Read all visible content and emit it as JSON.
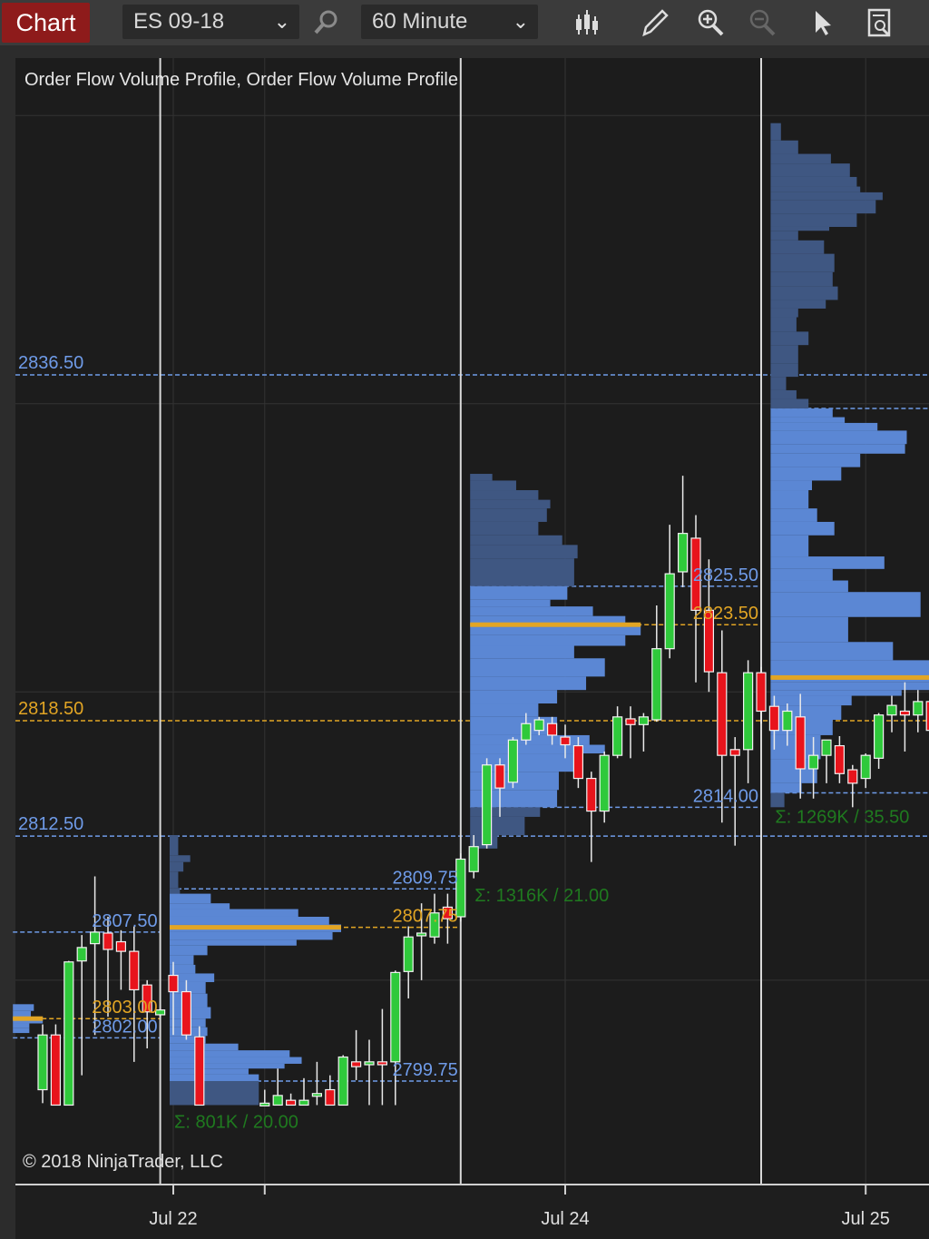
{
  "toolbar": {
    "chart_label": "Chart",
    "instrument": "ES 09-18",
    "interval": "60 Minute",
    "icons": [
      "search-icon",
      "bar-type-icon",
      "pencil-icon",
      "zoom-in-icon",
      "zoom-out-icon",
      "pointer-icon",
      "data-box-icon"
    ]
  },
  "chart_data": {
    "type": "candlestick-volume-profile",
    "title": "Order Flow Volume Profile, Order Flow Volume Profile",
    "copyright": "© 2018 NinjaTrader, LLC",
    "grid": true,
    "colors": {
      "background": "#1c1c1c",
      "up": "#2fc93b",
      "down": "#e8141c",
      "value_area": "#5b87d4",
      "outside_value_area": "#3f5782",
      "poc": "#e2a524",
      "level_line": "#6f9be8",
      "sigma_text": "#1f7a1f"
    },
    "x_axis": {
      "ticks": [
        {
          "label": "Jul 22",
          "bar": 10
        },
        {
          "label": "",
          "bar": 17
        },
        {
          "label": "Jul 24",
          "bar": 40
        },
        {
          "label": "Jul 25",
          "bar": 63
        }
      ],
      "session_breaks": [
        9,
        32,
        55
      ]
    },
    "y_gridlines": [
      2850,
      2835,
      2820,
      2805
    ],
    "horizontal_levels": [
      {
        "price": 2836.5,
        "label": "2836.50",
        "kind": "value"
      },
      {
        "price": 2818.5,
        "label": "2818.50",
        "kind": "poc"
      },
      {
        "price": 2812.5,
        "label": "2812.50",
        "kind": "value"
      }
    ],
    "candles": [
      [
        2799.3,
        2802.7,
        2798.6,
        2802.15
      ],
      [
        2802.15,
        2802.7,
        2798.5,
        2798.5
      ],
      [
        2798.5,
        2806.0,
        2798.5,
        2805.95
      ],
      [
        2806.0,
        2807.35,
        2800.05,
        2806.7
      ],
      [
        2806.9,
        2810.4,
        2802.15,
        2807.5
      ],
      [
        2807.45,
        2808.3,
        2803.1,
        2806.6
      ],
      [
        2807.0,
        2807.6,
        2804.5,
        2806.5
      ],
      [
        2806.5,
        2807.8,
        2800.75,
        2804.5
      ],
      [
        2804.75,
        2805.0,
        2801.45,
        2803.35
      ],
      [
        2803.2,
        2803.5,
        2803.1,
        2803.45
      ],
      [
        2805.25,
        2805.95,
        2802.15,
        2804.4
      ],
      [
        2804.4,
        2805.0,
        2801.9,
        2802.15
      ],
      [
        2802.05,
        2802.6,
        2798.5,
        2798.5
      ],
      null,
      null,
      null,
      null,
      [
        2798.6,
        2799.3,
        2798.5,
        2798.6
      ],
      [
        2798.5,
        2800.4,
        2798.5,
        2799.0
      ],
      [
        2798.75,
        2799.1,
        2798.5,
        2798.5
      ],
      [
        2798.5,
        2799.9,
        2798.5,
        2798.75
      ],
      [
        2799.1,
        2800.75,
        2798.5,
        2799.1
      ],
      [
        2799.3,
        2800.05,
        2798.5,
        2798.5
      ],
      [
        2798.5,
        2801.1,
        2798.5,
        2801.0
      ],
      [
        2800.75,
        2802.4,
        2799.8,
        2800.5
      ],
      [
        2800.6,
        2801.9,
        2798.5,
        2800.75
      ],
      [
        2800.75,
        2803.5,
        2798.5,
        2800.6
      ],
      [
        2800.75,
        2805.5,
        2798.5,
        2805.4
      ],
      [
        2805.45,
        2807.8,
        2804.05,
        2807.25
      ],
      [
        2807.35,
        2809.0,
        2805.0,
        2807.45
      ],
      [
        2807.25,
        2809.5,
        2806.9,
        2808.5
      ],
      [
        2808.8,
        2809.5,
        2806.9,
        2808.2
      ],
      [
        2808.3,
        2811.6,
        2808.05,
        2811.3
      ],
      [
        2810.65,
        2812.55,
        2810.3,
        2811.95
      ],
      [
        2812.05,
        2816.55,
        2811.85,
        2816.2
      ],
      [
        2816.2,
        2816.55,
        2813.5,
        2815.0
      ],
      [
        2815.3,
        2817.65,
        2815.0,
        2817.5
      ],
      [
        2817.5,
        2818.9,
        2817.25,
        2818.35
      ],
      [
        2818.0,
        2818.7,
        2817.75,
        2818.55
      ],
      [
        2818.35,
        2818.7,
        2817.25,
        2817.75
      ],
      [
        2817.65,
        2818.3,
        2816.55,
        2817.25
      ],
      [
        2817.2,
        2817.65,
        2815.0,
        2815.5
      ],
      [
        2815.5,
        2815.85,
        2811.15,
        2813.8
      ],
      [
        2813.8,
        2816.9,
        2813.2,
        2816.7
      ],
      [
        2816.7,
        2819.25,
        2816.55,
        2818.7
      ],
      [
        2818.6,
        2819.25,
        2816.55,
        2818.3
      ],
      [
        2818.3,
        2818.9,
        2816.9,
        2818.7
      ],
      [
        2818.55,
        2824.5,
        2818.45,
        2822.25
      ],
      [
        2822.25,
        2828.7,
        2821.75,
        2826.15
      ],
      [
        2826.25,
        2831.25,
        2825.45,
        2828.25
      ],
      [
        2828.0,
        2829.2,
        2820.5,
        2824.25
      ],
      [
        2824.25,
        2826.9,
        2820.0,
        2821.05
      ],
      [
        2821.0,
        2823.2,
        2813.2,
        2816.7
      ],
      [
        2817.0,
        2817.65,
        2812.0,
        2816.7
      ],
      [
        2817.0,
        2821.65,
        2815.25,
        2821.0
      ],
      [
        2821.0,
        2821.3,
        2818.35,
        2819.0
      ],
      [
        2819.25,
        2819.8,
        2817.0,
        2818.0
      ],
      [
        2818.0,
        2819.4,
        2817.2,
        2819.0
      ],
      [
        2818.7,
        2819.9,
        2814.45,
        2816.0
      ],
      [
        2816.0,
        2817.65,
        2814.45,
        2816.7
      ],
      [
        2816.7,
        2817.5,
        2815.25,
        2817.5
      ],
      [
        2817.2,
        2817.7,
        2815.25,
        2815.75
      ],
      [
        2815.95,
        2816.2,
        2814.0,
        2815.25
      ],
      [
        2815.5,
        2816.8,
        2815.0,
        2816.7
      ],
      [
        2816.55,
        2818.9,
        2816.0,
        2818.8
      ],
      [
        2818.8,
        2819.8,
        2817.9,
        2819.3
      ],
      [
        2819.0,
        2820.5,
        2816.9,
        2818.8
      ],
      [
        2818.8,
        2820.1,
        2817.9,
        2819.5
      ],
      [
        2819.5,
        2820.1,
        2818.0,
        2818.0
      ]
    ],
    "profiles": [
      {
        "start_bar": -2,
        "end_bar": 9,
        "vah": 2807.5,
        "poc": 2803.0,
        "val": 2802.0,
        "vah_label": "2807.50",
        "poc_label": "2803.00",
        "val_label": "2802.00",
        "sigma": "",
        "levels": [
          [
            2803.75,
            70
          ],
          [
            2803.4,
            60
          ],
          [
            2803.1,
            100
          ],
          [
            2802.75,
            55
          ],
          [
            2802.5,
            55
          ]
        ],
        "low": 2802.25
      },
      {
        "start_bar": 10,
        "end_bar": 32,
        "vah": 2809.75,
        "poc": 2807.75,
        "val": 2799.75,
        "vah_label": "2809.75",
        "poc_label": "2807.75",
        "val_label": "2799.75",
        "sigma": "Σ: 801K / 20.00",
        "levels": [
          [
            2812.55,
            5
          ],
          [
            2811.5,
            12
          ],
          [
            2811.15,
            8
          ],
          [
            2810.65,
            5
          ],
          [
            2809.8,
            6
          ],
          [
            2809.5,
            24
          ],
          [
            2809.0,
            35
          ],
          [
            2808.7,
            75
          ],
          [
            2808.3,
            93
          ],
          [
            2807.9,
            100
          ],
          [
            2807.5,
            95
          ],
          [
            2807.1,
            74
          ],
          [
            2806.8,
            22
          ],
          [
            2806.3,
            14
          ],
          [
            2805.8,
            15
          ],
          [
            2805.35,
            26
          ],
          [
            2804.9,
            21
          ],
          [
            2804.3,
            22
          ],
          [
            2803.6,
            24
          ],
          [
            2803.0,
            21
          ],
          [
            2802.55,
            22
          ],
          [
            2802.1,
            21
          ],
          [
            2801.7,
            40
          ],
          [
            2801.35,
            70
          ],
          [
            2801.0,
            77
          ],
          [
            2800.65,
            67
          ],
          [
            2800.4,
            46
          ],
          [
            2800.1,
            52
          ],
          [
            2799.75,
            52
          ]
        ],
        "low": 2798.5
      },
      {
        "start_bar": 33,
        "end_bar": 55,
        "vah": 2825.5,
        "poc": 2823.5,
        "val": 2814.0,
        "vah_label": "2825.50",
        "poc_label": "2823.50",
        "val_label": "2814.00",
        "sigma": "Σ: 1316K / 21.00",
        "levels": [
          [
            2831.35,
            13
          ],
          [
            2831.0,
            27
          ],
          [
            2830.5,
            40
          ],
          [
            2830.0,
            47
          ],
          [
            2829.55,
            45
          ],
          [
            2828.85,
            40
          ],
          [
            2828.15,
            54
          ],
          [
            2827.65,
            63
          ],
          [
            2826.95,
            61
          ],
          [
            2825.5,
            57
          ],
          [
            2824.8,
            47
          ],
          [
            2824.45,
            72
          ],
          [
            2823.95,
            91
          ],
          [
            2823.5,
            100
          ],
          [
            2822.95,
            91
          ],
          [
            2822.4,
            61
          ],
          [
            2821.75,
            79
          ],
          [
            2820.8,
            68
          ],
          [
            2820.1,
            51
          ],
          [
            2819.4,
            40
          ],
          [
            2818.7,
            51
          ],
          [
            2817.75,
            70
          ],
          [
            2817.25,
            79
          ],
          [
            2816.8,
            64
          ],
          [
            2815.85,
            52
          ],
          [
            2814.9,
            51
          ],
          [
            2814.0,
            41
          ],
          [
            2813.5,
            32
          ],
          [
            2812.55,
            16
          ],
          [
            2811.85,
            4
          ]
        ],
        "low": 2811.6
      },
      {
        "start_bar": 56,
        "end_bar": 80,
        "vah": 2834.75,
        "poc": 2820.75,
        "val": 2814.75,
        "vah_label": "",
        "poc_label": "",
        "val_label": "",
        "sigma": "Σ: 1269K / 35.50",
        "levels": [
          [
            2849.6,
            6
          ],
          [
            2848.7,
            16
          ],
          [
            2848.0,
            35
          ],
          [
            2847.5,
            46
          ],
          [
            2846.8,
            50
          ],
          [
            2846.3,
            52
          ],
          [
            2846.0,
            65
          ],
          [
            2845.6,
            61
          ],
          [
            2844.9,
            50
          ],
          [
            2844.2,
            34
          ],
          [
            2844.0,
            16
          ],
          [
            2843.5,
            31
          ],
          [
            2842.8,
            37
          ],
          [
            2841.85,
            36
          ],
          [
            2841.1,
            39
          ],
          [
            2840.4,
            32
          ],
          [
            2839.95,
            16
          ],
          [
            2839.5,
            15
          ],
          [
            2838.75,
            22
          ],
          [
            2838.05,
            16
          ],
          [
            2837.1,
            16
          ],
          [
            2836.4,
            9
          ],
          [
            2835.7,
            15
          ],
          [
            2835.25,
            22
          ],
          [
            2834.75,
            36
          ],
          [
            2834.3,
            43
          ],
          [
            2834.0,
            62
          ],
          [
            2833.6,
            79
          ],
          [
            2832.9,
            78
          ],
          [
            2832.4,
            52
          ],
          [
            2831.7,
            41
          ],
          [
            2831.0,
            24
          ],
          [
            2830.5,
            22
          ],
          [
            2829.55,
            27
          ],
          [
            2828.85,
            37
          ],
          [
            2828.15,
            22
          ],
          [
            2827.05,
            66
          ],
          [
            2826.4,
            36
          ],
          [
            2825.8,
            45
          ],
          [
            2825.2,
            87
          ],
          [
            2823.9,
            45
          ],
          [
            2822.6,
            71
          ],
          [
            2821.65,
            92
          ],
          [
            2820.8,
            100
          ],
          [
            2820.5,
            92
          ],
          [
            2820.1,
            76
          ],
          [
            2819.8,
            47
          ],
          [
            2819.3,
            41
          ],
          [
            2818.55,
            36
          ],
          [
            2817.75,
            29
          ],
          [
            2816.5,
            27
          ],
          [
            2815.25,
            18
          ],
          [
            2814.75,
            8
          ]
        ],
        "low": 2814.0
      }
    ]
  }
}
